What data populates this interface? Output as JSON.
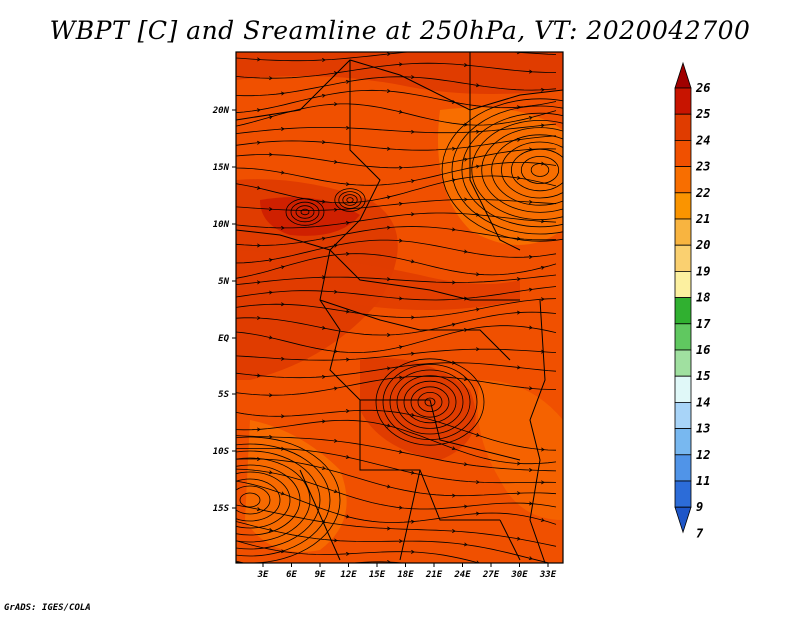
{
  "title": "WBPT [C] and Sreamline at 250hPa, VT: 2020042700",
  "credit": "GrADS: IGES/COLA",
  "map": {
    "lat_labels": [
      "20N",
      "15N",
      "10N",
      "5N",
      "EQ",
      "5S",
      "10S",
      "15S"
    ],
    "lon_labels": [
      "3E",
      "6E",
      "9E",
      "12E",
      "15E",
      "18E",
      "21E",
      "24E",
      "27E",
      "30E",
      "33E"
    ],
    "field": "WBPT",
    "units": "C",
    "level": "250hPa",
    "valid_time": "2020042700"
  },
  "colorbar": {
    "levels": [
      "26",
      "25",
      "24",
      "23",
      "22",
      "21",
      "20",
      "19",
      "18",
      "17",
      "16",
      "15",
      "14",
      "13",
      "12",
      "11",
      "9",
      "7"
    ],
    "colors": [
      "#a00000",
      "#c81400",
      "#e03c00",
      "#f05000",
      "#f86e00",
      "#fa9400",
      "#f8b440",
      "#fad070",
      "#fcf0a0",
      "#30b030",
      "#60c860",
      "#a0e0a0",
      "#e0f8f8",
      "#a8d4f8",
      "#78b8f0",
      "#5094e8",
      "#2c6cd8",
      "#1e56c8"
    ],
    "top_arrow_color": "#a00000",
    "bottom_arrow_color": "#1e56c8"
  }
}
